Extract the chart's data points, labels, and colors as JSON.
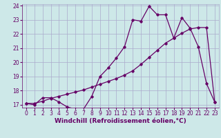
{
  "xlabel": "Windchill (Refroidissement éolien,°C)",
  "background_color": "#cde8e8",
  "grid_color": "#aaaacc",
  "line_color": "#660066",
  "x_min": 0,
  "x_max": 23,
  "y_min": 17,
  "y_max": 24,
  "series1_x": [
    0,
    1,
    2,
    3,
    4,
    5,
    6,
    7,
    8,
    9,
    10,
    11,
    12,
    13,
    14,
    15,
    16,
    17,
    18,
    19,
    20,
    21,
    22,
    23
  ],
  "series1_y": [
    17.1,
    17.0,
    17.5,
    17.5,
    17.2,
    16.85,
    16.7,
    16.7,
    17.6,
    19.0,
    19.6,
    20.3,
    21.1,
    23.0,
    22.9,
    23.95,
    23.35,
    23.35,
    21.7,
    23.15,
    22.4,
    21.1,
    18.5,
    17.2
  ],
  "series2_x": [
    0,
    1,
    2,
    3,
    4,
    5,
    6,
    7,
    8,
    9,
    10,
    11,
    12,
    13,
    14,
    15,
    16,
    17,
    18,
    19,
    20,
    21,
    22,
    23
  ],
  "series2_y": [
    17.1,
    17.1,
    17.25,
    17.45,
    17.6,
    17.75,
    17.9,
    18.05,
    18.25,
    18.45,
    18.65,
    18.85,
    19.1,
    19.4,
    19.85,
    20.35,
    20.85,
    21.35,
    21.7,
    22.05,
    22.35,
    22.45,
    22.45,
    17.2
  ],
  "marker_color": "#660066",
  "xlabel_fontsize": 6.5,
  "tick_fontsize": 5.5
}
